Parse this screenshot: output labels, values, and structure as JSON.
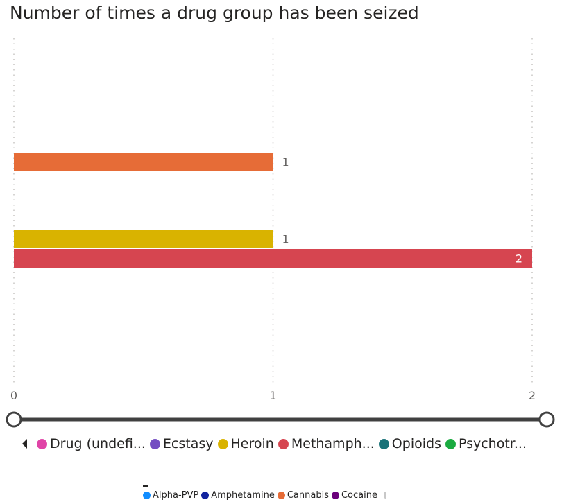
{
  "title": "Number of times a drug group has been seized",
  "chart_data": {
    "type": "bar",
    "orientation": "horizontal",
    "title": "Number of times a drug group has been seized",
    "xlim": [
      0,
      2
    ],
    "x_ticks": [
      "0",
      "1",
      "2"
    ],
    "grid": true,
    "categories": [
      "Cannabis",
      "Heroin",
      "Methamphetamine"
    ],
    "series": [
      {
        "name": "Cannabis",
        "category": "Cannabis",
        "value": 1,
        "color": "#E66C37",
        "label": "1"
      },
      {
        "name": "Heroin",
        "category": "Heroin",
        "value": 1,
        "color": "#D9B300",
        "label": "1"
      },
      {
        "name": "Methamphetamine",
        "category": "Methamphetamine",
        "value": 2,
        "color": "#D64550",
        "label": "2"
      }
    ],
    "legend_position": "bottom"
  },
  "legend_main": [
    {
      "label": "Drug (undefi...",
      "color": "#E044A7"
    },
    {
      "label": "Ecstasy",
      "color": "#744EC2"
    },
    {
      "label": "Heroin",
      "color": "#D9B300"
    },
    {
      "label": "Methamph...",
      "color": "#D64550"
    },
    {
      "label": "Opioids",
      "color": "#197278"
    },
    {
      "label": "Psychotr...",
      "color": "#1AAB40"
    }
  ],
  "legend_small": [
    {
      "label": "Alpha-PVP",
      "color": "#118DFF"
    },
    {
      "label": "Amphetamine",
      "color": "#12239E"
    },
    {
      "label": "Cannabis",
      "color": "#E66C37"
    },
    {
      "label": "Cocaine",
      "color": "#6B007B"
    }
  ]
}
